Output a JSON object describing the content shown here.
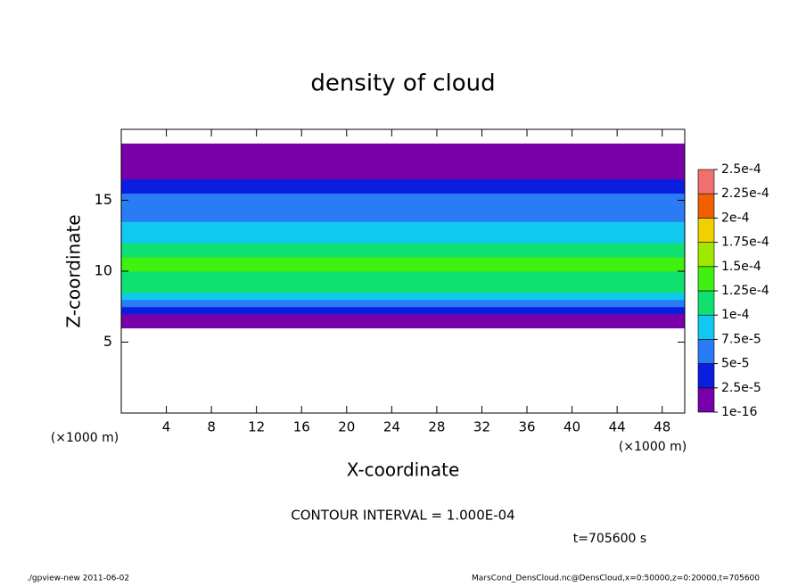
{
  "chart_data": {
    "type": "contour",
    "title": "density of cloud",
    "xlabel": "X-coordinate",
    "ylabel": "Z-coordinate",
    "x_unit": "(×1000 m)",
    "annotation": "CONTOUR INTERVAL = 1.000E-04",
    "time_label": "t=705600 s",
    "footer_left": "./gpview-new  2011-06-02",
    "footer_right": "MarsCond_DensCloud.nc@DensCloud,x=0:50000,z=0:20000,t=705600",
    "xlim": [
      0,
      50
    ],
    "ylim": [
      0,
      20
    ],
    "xticks": [
      4,
      8,
      12,
      16,
      20,
      24,
      28,
      32,
      36,
      40,
      44,
      48
    ],
    "yticks": [
      5,
      10,
      15
    ],
    "z": [
      6.25,
      6.75,
      7.25,
      7.75,
      8.25,
      8.75,
      9.25,
      9.75,
      10.25,
      10.75,
      11.25,
      11.75,
      12.25,
      12.75,
      13.25,
      13.75,
      14.25,
      14.75,
      15.25,
      15.75,
      16.25,
      16.75,
      17.25,
      17.75,
      18.25,
      18.75
    ],
    "values": [
      8e-06,
      1.8e-05,
      3e-05,
      5.5e-05,
      8e-05,
      0.0001,
      0.00011,
      0.00012,
      0.00013,
      0.000125,
      0.000115,
      0.000105,
      9e-05,
      8e-05,
      7.5e-05,
      7e-05,
      6.5e-05,
      6e-05,
      5.5e-05,
      4.5e-05,
      3e-05,
      2e-05,
      1.5e-05,
      1e-05,
      5e-06,
      2e-06
    ],
    "colorbar": {
      "ticks": [
        {
          "value": 1e-16,
          "label": "1e-16"
        },
        {
          "value": 2.5e-05,
          "label": "2.5e-5"
        },
        {
          "value": 5e-05,
          "label": "5e-5"
        },
        {
          "value": 7.5e-05,
          "label": "7.5e-5"
        },
        {
          "value": 0.0001,
          "label": "1e-4"
        },
        {
          "value": 0.000125,
          "label": "1.25e-4"
        },
        {
          "value": 0.00015,
          "label": "1.5e-4"
        },
        {
          "value": 0.000175,
          "label": "1.75e-4"
        },
        {
          "value": 0.0002,
          "label": "2e-4"
        },
        {
          "value": 0.000225,
          "label": "2.25e-4"
        },
        {
          "value": 0.00025,
          "label": "2.5e-4"
        }
      ],
      "colors": [
        "#7800a8",
        "#0a1ee0",
        "#2a7cf5",
        "#10c8f0",
        "#10e070",
        "#40f010",
        "#a0e800",
        "#f0d000",
        "#f06000",
        "#f07070"
      ]
    }
  }
}
